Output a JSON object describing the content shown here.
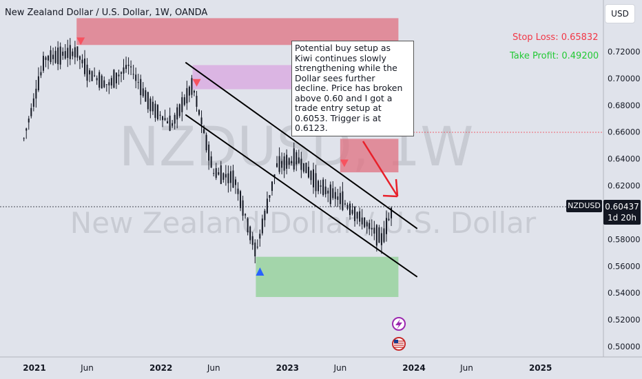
{
  "header": {
    "title": "New Zealand Dollar / U.S. Dollar, 1W, OANDA",
    "currency_button": "USD"
  },
  "watermark": {
    "ticker": "NZDUSD, 1W",
    "name": "New Zealand Dollar / U.S. Dollar"
  },
  "levels": {
    "stop_loss_label": "Stop Loss: 0.65832",
    "take_profit_label": "Take Profit: 0.49200"
  },
  "annotation": {
    "text": "Potential buy setup as Kiwi continues slowly strengthening while the Dollar sees further decline. Price has broken above 0.60 and I got a trade entry setup at 0.6053. Trigger is at 0.6123."
  },
  "price_badge": {
    "symbol": "NZDUSD",
    "price": "0.60437",
    "countdown": "1d 20h"
  },
  "colors": {
    "background": "#e0e3eb",
    "red_zone": "#e07080",
    "purple_zone": "#d9a6e0",
    "green_zone": "#8fd094",
    "stop_loss": "#f23645",
    "take_profit": "#22c934",
    "arrow": "#e8202a",
    "triangle_down": "#f7525f",
    "triangle_up": "#2962ff"
  },
  "chart_data": {
    "type": "candlestick",
    "title": "New Zealand Dollar / U.S. Dollar, 1W, OANDA",
    "x_ticks": [
      "2021",
      "Jun",
      "2022",
      "Jun",
      "2023",
      "Jun",
      "2024",
      "Jun",
      "2025"
    ],
    "y_ticks": [
      "0.72000",
      "0.70000",
      "0.68000",
      "0.66000",
      "0.64000",
      "0.62000",
      "0.60000",
      "0.58000",
      "0.56000",
      "0.54000",
      "0.52000",
      "0.50000"
    ],
    "y_tick_values": [
      0.72,
      0.7,
      0.68,
      0.66,
      0.64,
      0.62,
      0.6,
      0.58,
      0.56,
      0.54,
      0.52,
      0.5
    ],
    "ylim": [
      0.495,
      0.745
    ],
    "current_price": 0.60437,
    "stop_loss": 0.65832,
    "take_profit": 0.492,
    "price_path": [
      {
        "date": "2020-12",
        "price": 0.655
      },
      {
        "date": "2021-02",
        "price": 0.715
      },
      {
        "date": "2021-05",
        "price": 0.72
      },
      {
        "date": "2021-06",
        "price": 0.705
      },
      {
        "date": "2021-08",
        "price": 0.695
      },
      {
        "date": "2021-10",
        "price": 0.71
      },
      {
        "date": "2021-12",
        "price": 0.68
      },
      {
        "date": "2022-02",
        "price": 0.665
      },
      {
        "date": "2022-04",
        "price": 0.695
      },
      {
        "date": "2022-06",
        "price": 0.63
      },
      {
        "date": "2022-08",
        "price": 0.625
      },
      {
        "date": "2022-10",
        "price": 0.57
      },
      {
        "date": "2022-12",
        "price": 0.635
      },
      {
        "date": "2023-02",
        "price": 0.64
      },
      {
        "date": "2023-04",
        "price": 0.62
      },
      {
        "date": "2023-06",
        "price": 0.61
      },
      {
        "date": "2023-08",
        "price": 0.595
      },
      {
        "date": "2023-10",
        "price": 0.58
      },
      {
        "date": "2023-11",
        "price": 0.604
      }
    ],
    "zones": [
      {
        "kind": "supply",
        "color": "red",
        "from": "2021-05",
        "to": "2023-11",
        "y_range": [
          0.725,
          0.745
        ]
      },
      {
        "kind": "supply",
        "color": "purple",
        "from": "2022-04",
        "to": "2023-11",
        "y_range": [
          0.692,
          0.71
        ]
      },
      {
        "kind": "supply",
        "color": "red",
        "from": "2023-06",
        "to": "2023-11",
        "y_range": [
          0.63,
          0.655
        ]
      },
      {
        "kind": "demand",
        "color": "green",
        "from": "2022-10",
        "to": "2023-11",
        "y_range": [
          0.537,
          0.567
        ]
      }
    ],
    "trend_lines": [
      {
        "from": {
          "date": "2022-03",
          "price": 0.712
        },
        "to": {
          "date": "2023-12",
          "price": 0.588
        }
      },
      {
        "from": {
          "date": "2022-03",
          "price": 0.673
        },
        "to": {
          "date": "2023-12",
          "price": 0.552
        }
      }
    ],
    "markers": [
      {
        "type": "triangle-down",
        "date": "2021-05",
        "price": 0.728
      },
      {
        "type": "triangle-down",
        "date": "2022-04",
        "price": 0.697
      },
      {
        "type": "triangle-down",
        "date": "2023-06",
        "price": 0.637
      },
      {
        "type": "triangle-up",
        "date": "2022-10",
        "price": 0.556
      }
    ]
  }
}
